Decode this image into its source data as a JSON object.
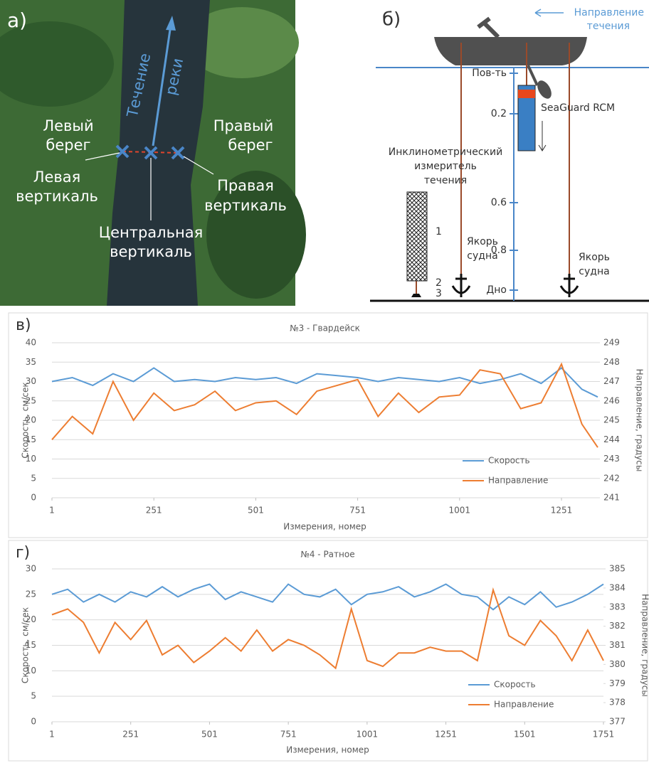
{
  "panel_a": {
    "label": "а)",
    "flow": [
      "Течение",
      "реки"
    ],
    "left_bank": [
      "Левый",
      "берег"
    ],
    "right_bank": [
      "Правый",
      "берег"
    ],
    "left_vertical": [
      "Левая",
      "вертикаль"
    ],
    "right_vertical": [
      "Правая",
      "вертикаль"
    ],
    "center_vertical": [
      "Центральная",
      "вертикаль"
    ]
  },
  "panel_b": {
    "label": "б)",
    "flow_direction": [
      "Направление",
      "течения"
    ],
    "surface": "Пов-ть",
    "bottom": "Дно",
    "depths": [
      "0.2",
      "0.6",
      "0.8"
    ],
    "instrument": "SeaGuard RCM",
    "inclinometer": [
      "Инклинометрический",
      "измеритель",
      "течения"
    ],
    "anchor_1": [
      "Якорь",
      "судна"
    ],
    "anchor_2": [
      "Якорь",
      "судна"
    ],
    "parts": [
      "1",
      "2",
      "3"
    ]
  },
  "chart_data": [
    {
      "type": "line",
      "panel_label": "в)",
      "title": "№3 - Гвардейск",
      "xlabel": "Измерения, номер",
      "ylabel": "Скорость, см/сек",
      "y2label": "Направление, градусы",
      "x": [
        1,
        51,
        101,
        151,
        201,
        251,
        301,
        351,
        401,
        451,
        501,
        551,
        601,
        651,
        701,
        751,
        801,
        851,
        901,
        951,
        1001,
        1051,
        1101,
        1151,
        1201,
        1251,
        1301,
        1340
      ],
      "xlim": [
        1,
        1340
      ],
      "xticks": [
        1,
        251,
        501,
        751,
        1001,
        1251
      ],
      "ylim": [
        0,
        40
      ],
      "yticks": [
        0,
        5,
        10,
        15,
        20,
        25,
        30,
        35,
        40
      ],
      "y2lim": [
        241,
        249
      ],
      "y2ticks": [
        241,
        242,
        243,
        244,
        245,
        246,
        247,
        248,
        249
      ],
      "grid": true,
      "legend_position": "lower right",
      "series": [
        {
          "name": "Скорость",
          "color": "#5b9bd5",
          "values": [
            30,
            31,
            29,
            32,
            30,
            33.5,
            30,
            30.5,
            30,
            31,
            30.5,
            31,
            29.5,
            32,
            31.5,
            31,
            30,
            31,
            30.5,
            30,
            31,
            29.5,
            30.5,
            32,
            29.5,
            33.5,
            28,
            26
          ]
        },
        {
          "name": "Направление",
          "color": "#ed7d31",
          "axis": "y2",
          "values": [
            244,
            245.2,
            244.3,
            247,
            245,
            246.4,
            245.5,
            245.8,
            246.5,
            245.5,
            245.9,
            246,
            245.3,
            246.5,
            246.8,
            247.1,
            245.2,
            246.4,
            245.4,
            246.2,
            246.3,
            247.6,
            247.4,
            245.6,
            245.9,
            247.9,
            244.8,
            243.6
          ]
        }
      ]
    },
    {
      "type": "line",
      "panel_label": "г)",
      "title": "№4 - Ратное",
      "xlabel": "Измерения, номер",
      "ylabel": "Скорость, см/сек",
      "y2label": "Направление, градусы",
      "x": [
        1,
        51,
        101,
        151,
        201,
        251,
        301,
        351,
        401,
        451,
        501,
        551,
        601,
        651,
        701,
        751,
        801,
        851,
        901,
        951,
        1001,
        1051,
        1101,
        1151,
        1201,
        1251,
        1301,
        1351,
        1401,
        1451,
        1501,
        1551,
        1601,
        1651,
        1701,
        1751
      ],
      "xlim": [
        1,
        1751
      ],
      "xticks": [
        1,
        251,
        501,
        751,
        1001,
        1251,
        1501,
        1751
      ],
      "ylim": [
        0,
        30
      ],
      "yticks": [
        0,
        5,
        10,
        15,
        20,
        25,
        30
      ],
      "y2lim": [
        377,
        385
      ],
      "y2ticks": [
        377,
        378,
        379,
        380,
        381,
        382,
        383,
        384,
        385
      ],
      "grid": true,
      "legend_position": "lower right",
      "series": [
        {
          "name": "Скорость",
          "color": "#5b9bd5",
          "values": [
            25,
            26,
            23.5,
            25,
            23.5,
            25.5,
            24.5,
            26.5,
            24.5,
            26,
            27,
            24,
            25.5,
            24.5,
            23.5,
            27,
            25,
            24.5,
            26,
            23,
            25,
            25.5,
            26.5,
            24.5,
            25.5,
            27,
            25,
            24.5,
            22,
            24.5,
            23,
            25.5,
            22.5,
            23.5,
            25,
            27
          ]
        },
        {
          "name": "Направление",
          "color": "#ed7d31",
          "axis": "y2",
          "values": [
            382.6,
            382.9,
            382.2,
            380.6,
            382.2,
            381.3,
            382.3,
            380.5,
            381,
            380.1,
            380.7,
            381.4,
            380.7,
            381.8,
            380.7,
            381.3,
            381,
            380.5,
            379.8,
            382.9,
            380.2,
            379.9,
            380.6,
            380.6,
            380.9,
            380.7,
            380.7,
            380.2,
            383.9,
            381.5,
            381,
            382.3,
            381.5,
            380.2,
            381.8,
            380.2
          ]
        }
      ]
    }
  ]
}
